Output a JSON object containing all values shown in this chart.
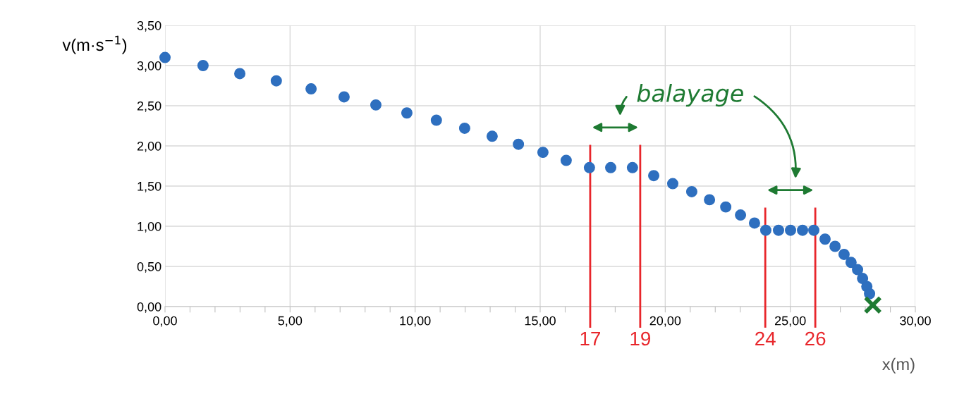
{
  "chart_data": {
    "type": "scatter",
    "xlabel": "x(m)",
    "ylabel": "v(m·s$^{−1}$)",
    "xlim": [
      0,
      30
    ],
    "ylim": [
      0,
      3.5
    ],
    "xticks": [
      {
        "value": 0,
        "label": "0,00"
      },
      {
        "value": 1,
        "label": null
      },
      {
        "value": 2,
        "label": null
      },
      {
        "value": 3,
        "label": null
      },
      {
        "value": 4,
        "label": null
      },
      {
        "value": 5,
        "label": "5,00"
      },
      {
        "value": 6,
        "label": null
      },
      {
        "value": 7,
        "label": null
      },
      {
        "value": 8,
        "label": null
      },
      {
        "value": 9,
        "label": null
      },
      {
        "value": 10,
        "label": "10,00"
      },
      {
        "value": 11,
        "label": null
      },
      {
        "value": 12,
        "label": null
      },
      {
        "value": 13,
        "label": null
      },
      {
        "value": 14,
        "label": null
      },
      {
        "value": 15,
        "label": "15,00"
      },
      {
        "value": 16,
        "label": null
      },
      {
        "value": 17,
        "label": null
      },
      {
        "value": 18,
        "label": null
      },
      {
        "value": 19,
        "label": null
      },
      {
        "value": 20,
        "label": "20,00"
      },
      {
        "value": 21,
        "label": null
      },
      {
        "value": 22,
        "label": null
      },
      {
        "value": 23,
        "label": null
      },
      {
        "value": 24,
        "label": null
      },
      {
        "value": 25,
        "label": "25,00"
      },
      {
        "value": 26,
        "label": null
      },
      {
        "value": 27,
        "label": null
      },
      {
        "value": 28,
        "label": null
      },
      {
        "value": 29,
        "label": null
      },
      {
        "value": 30,
        "label": "30,00"
      }
    ],
    "yticks": [
      {
        "value": 0,
        "label": "0,00"
      },
      {
        "value": 0.5,
        "label": "0,50"
      },
      {
        "value": 1,
        "label": "1,00"
      },
      {
        "value": 1.5,
        "label": "1,50"
      },
      {
        "value": 2,
        "label": "2,00"
      },
      {
        "value": 2.5,
        "label": "2,50"
      },
      {
        "value": 3,
        "label": "3,00"
      },
      {
        "value": 3.5,
        "label": "3,50"
      }
    ],
    "grid": true,
    "series": [
      {
        "color": "#2e6fbf",
        "marker": "circle",
        "x": [
          0,
          1.52,
          2.99,
          4.45,
          5.84,
          7.16,
          8.43,
          9.67,
          10.85,
          11.98,
          13.08,
          14.13,
          15.11,
          16.04,
          16.97,
          17.82,
          18.69,
          19.54,
          20.3,
          21.06,
          21.77,
          22.42,
          23.01,
          23.57,
          24.02,
          24.53,
          25.01,
          25.49,
          25.94,
          26.39,
          26.79,
          27.15,
          27.43,
          27.69,
          27.89,
          28.06,
          28.17
        ],
        "values": [
          3.1,
          3.0,
          2.9,
          2.81,
          2.71,
          2.61,
          2.51,
          2.41,
          2.32,
          2.22,
          2.12,
          2.02,
          1.92,
          1.82,
          1.73,
          1.73,
          1.73,
          1.63,
          1.53,
          1.43,
          1.33,
          1.24,
          1.14,
          1.04,
          0.95,
          0.95,
          0.95,
          0.95,
          0.95,
          0.84,
          0.75,
          0.65,
          0.55,
          0.46,
          0.35,
          0.25,
          0.16
        ]
      },
      {
        "color": "#1e7a32",
        "marker": "cross",
        "x": [
          28.3
        ],
        "values": [
          0.02
        ]
      }
    ],
    "ref_lines": [
      {
        "axis": "x",
        "value": 17,
        "label": "17",
        "color": "#e8262b"
      },
      {
        "axis": "x",
        "value": 19,
        "label": "19",
        "color": "#e8262b"
      },
      {
        "axis": "x",
        "value": 24,
        "label": "24",
        "color": "#e8262b"
      },
      {
        "axis": "x",
        "value": 26,
        "label": "26",
        "color": "#e8262b"
      }
    ],
    "annotations": [
      "balayage"
    ]
  }
}
